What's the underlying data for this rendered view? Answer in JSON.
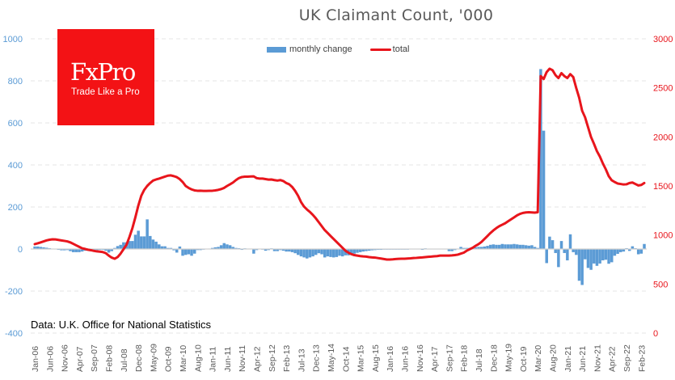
{
  "chart_data": {
    "type": "bar+line",
    "title": "UK Claimant Count, '000",
    "source_note": "Data: U.K. Office for National Statistics",
    "logo": {
      "brand": "FxPro",
      "tagline": "Trade Like a Pro",
      "color": "#f31215"
    },
    "x_range": [
      "Jan-06",
      "Mar-23"
    ],
    "x_tick_labels": [
      "Jan-06",
      "Jun-06",
      "Nov-06",
      "Apr-07",
      "Sep-07",
      "Feb-08",
      "Jul-08",
      "Dec-08",
      "May-09",
      "Oct-09",
      "Mar-10",
      "Aug-10",
      "Jan-11",
      "Jun-11",
      "Nov-11",
      "Apr-12",
      "Sep-12",
      "Feb-13",
      "Jul-13",
      "Dec-13",
      "May-14",
      "Oct-14",
      "Mar-15",
      "Aug-15",
      "Jan-16",
      "Jun-16",
      "Nov-16",
      "Apr-17",
      "Sep-17",
      "Feb-18",
      "Jul-18",
      "Dec-18",
      "May-19",
      "Oct-19",
      "Mar-20",
      "Aug-20",
      "Jan-21",
      "Jun-21",
      "Nov-21",
      "Apr-22",
      "Sep-22",
      "Feb-23"
    ],
    "y_left": {
      "range": [
        -400,
        1000
      ],
      "ticks": [
        -400,
        -200,
        0,
        200,
        400,
        600,
        800,
        1000
      ],
      "color": "#5b9bd5"
    },
    "y_right": {
      "range": [
        0,
        3000
      ],
      "ticks": [
        0,
        500,
        1000,
        1500,
        2000,
        2500,
        3000
      ],
      "color": "#e8151c"
    },
    "grid": true,
    "legend_placement": "top-center",
    "series": [
      {
        "name": "monthly change",
        "type": "bar",
        "axis": "left",
        "color": "#5b9bd5",
        "values": [
          12,
          12,
          10,
          8,
          6,
          4,
          2,
          -2,
          -4,
          -6,
          -6,
          -5,
          -10,
          -15,
          -15,
          -15,
          -12,
          -8,
          -8,
          -6,
          -6,
          -5,
          -4,
          -4,
          -8,
          -17,
          -10,
          5,
          14,
          20,
          32,
          32,
          38,
          38,
          68,
          87,
          60,
          60,
          141,
          62,
          45,
          35,
          22,
          13,
          13,
          5,
          5,
          -6,
          -17,
          12,
          -32,
          -28,
          -25,
          -32,
          -22,
          -5,
          -5,
          -3,
          0,
          2,
          5,
          8,
          10,
          18,
          28,
          22,
          18,
          10,
          5,
          4,
          -4,
          3,
          2,
          2,
          -22,
          -5,
          0,
          -3,
          -8,
          -5,
          3,
          -10,
          -10,
          -5,
          -8,
          -12,
          -12,
          -15,
          -20,
          -28,
          -35,
          -40,
          -45,
          -40,
          -35,
          -28,
          -20,
          -25,
          -40,
          -35,
          -38,
          -40,
          -38,
          -32,
          -35,
          -30,
          -30,
          -28,
          -22,
          -18,
          -15,
          -12,
          -10,
          -8,
          -6,
          -5,
          -4,
          -4,
          -3,
          -3,
          -3,
          -3,
          -3,
          -3,
          -3,
          -3,
          -3,
          -2,
          -2,
          -2,
          -2,
          -4,
          3,
          -2,
          -2,
          -2,
          -2,
          -2,
          -2,
          -2,
          -10,
          -10,
          -5,
          2,
          10,
          5,
          5,
          5,
          5,
          8,
          10,
          10,
          12,
          15,
          20,
          22,
          20,
          20,
          24,
          22,
          22,
          22,
          24,
          22,
          20,
          20,
          18,
          16,
          18,
          10,
          5,
          856,
          563,
          -67,
          59,
          42,
          -19,
          -86,
          38,
          -19,
          -54,
          70,
          -15,
          -28,
          -151,
          -171,
          -49,
          -90,
          -99,
          -69,
          -80,
          -69,
          -54,
          -51,
          -70,
          -63,
          -32,
          -23,
          -15,
          -12,
          4,
          -9,
          13,
          4,
          -25,
          -22,
          24
        ]
      },
      {
        "name": "total",
        "type": "line",
        "axis": "right",
        "color": "#e8151c",
        "values": [
          907,
          915,
          925,
          935,
          945,
          952,
          956,
          955,
          950,
          945,
          940,
          935,
          925,
          910,
          895,
          880,
          865,
          858,
          850,
          845,
          838,
          833,
          830,
          826,
          815,
          790,
          770,
          758,
          775,
          810,
          855,
          900,
          980,
          1070,
          1180,
          1300,
          1400,
          1460,
          1500,
          1530,
          1555,
          1566,
          1575,
          1585,
          1595,
          1605,
          1608,
          1600,
          1590,
          1570,
          1540,
          1500,
          1480,
          1465,
          1455,
          1451,
          1452,
          1450,
          1450,
          1451,
          1451,
          1455,
          1460,
          1468,
          1480,
          1500,
          1517,
          1535,
          1560,
          1580,
          1591,
          1595,
          1595,
          1597,
          1598,
          1580,
          1575,
          1575,
          1570,
          1565,
          1566,
          1560,
          1555,
          1560,
          1550,
          1530,
          1517,
          1490,
          1450,
          1400,
          1336,
          1290,
          1260,
          1235,
          1205,
          1170,
          1130,
          1090,
          1050,
          1020,
          990,
          960,
          930,
          900,
          870,
          840,
          820,
          805,
          795,
          790,
          785,
          782,
          780,
          775,
          772,
          770,
          765,
          760,
          755,
          750,
          750,
          752,
          755,
          757,
          758,
          758,
          760,
          762,
          765,
          767,
          770,
          772,
          775,
          778,
          780,
          783,
          785,
          790,
          790,
          790,
          790,
          792,
          795,
          800,
          810,
          820,
          840,
          855,
          870,
          890,
          907,
          930,
          960,
          990,
          1020,
          1047,
          1070,
          1090,
          1105,
          1120,
          1140,
          1160,
          1180,
          1200,
          1215,
          1225,
          1230,
          1232,
          1230,
          1228,
          1232,
          2620,
          2590,
          2660,
          2695,
          2680,
          2630,
          2600,
          2650,
          2620,
          2600,
          2640,
          2610,
          2500,
          2400,
          2267,
          2200,
          2100,
          2000,
          1930,
          1855,
          1800,
          1730,
          1670,
          1600,
          1558,
          1540,
          1525,
          1520,
          1515,
          1517,
          1530,
          1535,
          1520,
          1505,
          1510,
          1530
        ]
      }
    ]
  }
}
